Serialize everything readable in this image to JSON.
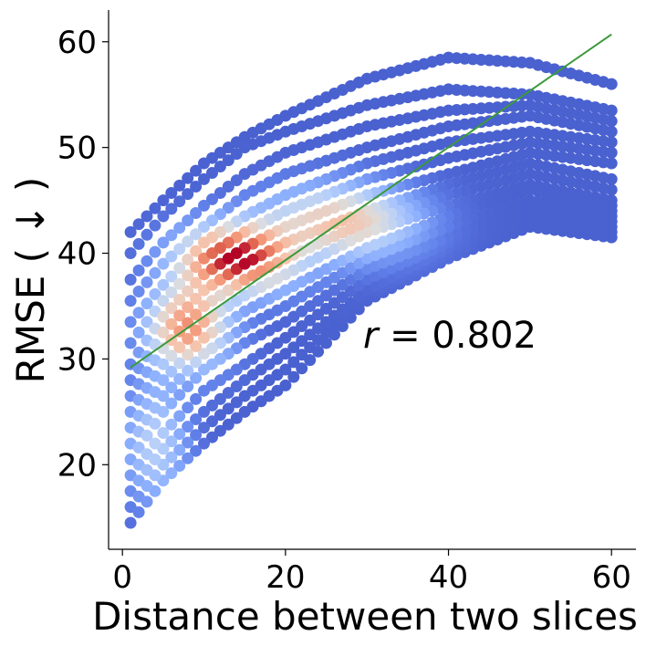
{
  "chart_data": {
    "type": "scatter",
    "xlabel": "Distance between two slices",
    "ylabel": "RMSE ( ↓ )",
    "xlim": [
      -1.7,
      63
    ],
    "ylim": [
      12,
      63
    ],
    "xticks": [
      0,
      20,
      40,
      60
    ],
    "yticks": [
      20,
      30,
      40,
      50,
      60
    ],
    "grid": false,
    "colormap": "coolwarm (point density: blue = low, red = high)",
    "annotation": {
      "variable": "r",
      "text": " = 0.802",
      "value": 0.802
    },
    "fit_line": {
      "color": "#3a9a3a",
      "x": [
        1,
        60
      ],
      "y": [
        29.2,
        60.7
      ]
    },
    "point_color_low": "#3b4cc0",
    "point_color_high": "#b40426",
    "band_curves": {
      "x_range": [
        1,
        60
      ],
      "description": "points form curved bands rising quickly then levelling off; each band shown at x=1,5,10,15,20,30,40,50,60",
      "knots_x": [
        1,
        5,
        10,
        15,
        20,
        30,
        40,
        50,
        60
      ],
      "bands": [
        [
          42.0,
          45.0,
          48.5,
          51.0,
          53.0,
          56.5,
          58.5,
          58.0,
          56.0
        ],
        [
          40.0,
          43.5,
          47.0,
          50.0,
          51.5,
          54.0,
          55.5,
          55.0,
          53.5
        ],
        [
          37.5,
          41.0,
          44.5,
          47.5,
          49.5,
          52.0,
          53.5,
          54.0,
          52.5
        ],
        [
          35.5,
          39.0,
          42.5,
          45.5,
          47.5,
          50.0,
          52.0,
          53.0,
          51.5
        ],
        [
          33.5,
          37.0,
          41.0,
          43.5,
          45.5,
          48.5,
          50.5,
          51.5,
          50.5
        ],
        [
          31.5,
          35.5,
          39.5,
          42.0,
          44.0,
          47.0,
          49.0,
          50.5,
          49.5
        ],
        [
          29.5,
          34.0,
          38.0,
          40.5,
          42.5,
          45.5,
          47.5,
          49.5,
          48.5
        ],
        [
          28.0,
          32.5,
          36.5,
          39.0,
          41.0,
          44.0,
          46.5,
          48.5,
          47.0
        ],
        [
          26.5,
          31.0,
          35.0,
          37.5,
          39.5,
          43.0,
          45.5,
          47.5,
          46.0
        ],
        [
          25.0,
          29.5,
          33.5,
          36.0,
          38.0,
          42.0,
          44.5,
          46.5,
          45.0
        ],
        [
          23.5,
          28.0,
          32.0,
          34.5,
          36.5,
          40.5,
          43.5,
          46.0,
          44.5
        ],
        [
          22.0,
          26.5,
          30.5,
          33.0,
          35.0,
          39.5,
          42.5,
          45.0,
          44.0
        ],
        [
          20.5,
          25.0,
          29.0,
          31.5,
          33.5,
          38.5,
          41.5,
          44.5,
          43.5
        ],
        [
          19.0,
          23.0,
          27.0,
          29.5,
          32.0,
          37.5,
          41.0,
          44.0,
          43.0
        ],
        [
          17.5,
          21.5,
          25.0,
          28.0,
          30.5,
          36.5,
          40.5,
          43.5,
          42.5
        ],
        [
          16.0,
          20.0,
          23.5,
          26.5,
          29.0,
          36.0,
          40.0,
          43.0,
          42.0
        ],
        [
          14.5,
          18.5,
          22.0,
          25.0,
          27.5,
          35.5,
          39.5,
          42.5,
          41.5
        ]
      ]
    }
  }
}
